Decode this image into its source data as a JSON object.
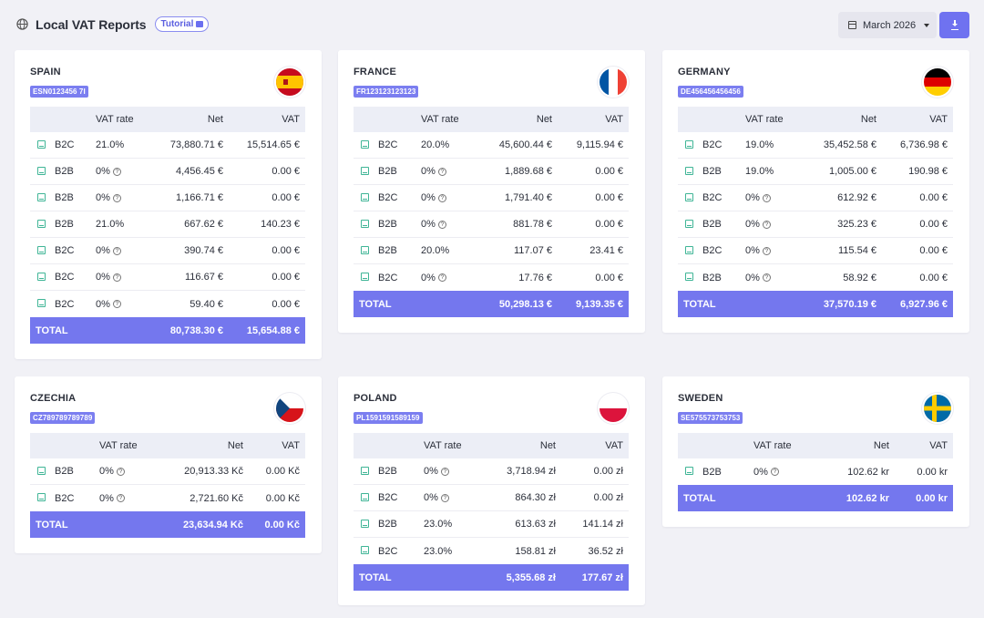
{
  "header": {
    "title": "Local VAT Reports",
    "tutorial_label": "Tutorial",
    "month_label": "March 2026"
  },
  "columns": {
    "vat_rate": "VAT rate",
    "net": "Net",
    "vat": "VAT",
    "total": "TOTAL"
  },
  "cards": {
    "spain": {
      "name": "SPAIN",
      "vat_id": "ESN0123456 7I",
      "rows": [
        {
          "type": "B2C",
          "rate": "21.0%",
          "net": "73,880.71 €",
          "vat": "15,514.65 €"
        },
        {
          "type": "B2B",
          "rate": "0%",
          "net": "4,456.45 €",
          "vat": "0.00 €"
        },
        {
          "type": "B2B",
          "rate": "0%",
          "net": "1,166.71 €",
          "vat": "0.00 €"
        },
        {
          "type": "B2B",
          "rate": "21.0%",
          "net": "667.62 €",
          "vat": "140.23 €"
        },
        {
          "type": "B2C",
          "rate": "0%",
          "net": "390.74 €",
          "vat": "0.00 €"
        },
        {
          "type": "B2C",
          "rate": "0%",
          "net": "116.67 €",
          "vat": "0.00 €"
        },
        {
          "type": "B2C",
          "rate": "0%",
          "net": "59.40 €",
          "vat": "0.00 €"
        }
      ],
      "total_net": "80,738.30 €",
      "total_vat": "15,654.88 €"
    },
    "france": {
      "name": "FRANCE",
      "vat_id": "FR123123123123",
      "rows": [
        {
          "type": "B2C",
          "rate": "20.0%",
          "net": "45,600.44 €",
          "vat": "9,115.94 €"
        },
        {
          "type": "B2B",
          "rate": "0%",
          "net": "1,889.68 €",
          "vat": "0.00 €"
        },
        {
          "type": "B2C",
          "rate": "0%",
          "net": "1,791.40 €",
          "vat": "0.00 €"
        },
        {
          "type": "B2B",
          "rate": "0%",
          "net": "881.78 €",
          "vat": "0.00 €"
        },
        {
          "type": "B2B",
          "rate": "20.0%",
          "net": "117.07 €",
          "vat": "23.41 €"
        },
        {
          "type": "B2C",
          "rate": "0%",
          "net": "17.76 €",
          "vat": "0.00 €"
        }
      ],
      "total_net": "50,298.13 €",
      "total_vat": "9,139.35 €"
    },
    "germany": {
      "name": "GERMANY",
      "vat_id": "DE456456456456",
      "rows": [
        {
          "type": "B2C",
          "rate": "19.0%",
          "net": "35,452.58 €",
          "vat": "6,736.98 €"
        },
        {
          "type": "B2B",
          "rate": "19.0%",
          "net": "1,005.00 €",
          "vat": "190.98 €"
        },
        {
          "type": "B2C",
          "rate": "0%",
          "net": "612.92 €",
          "vat": "0.00 €"
        },
        {
          "type": "B2B",
          "rate": "0%",
          "net": "325.23 €",
          "vat": "0.00 €"
        },
        {
          "type": "B2C",
          "rate": "0%",
          "net": "115.54 €",
          "vat": "0.00 €"
        },
        {
          "type": "B2B",
          "rate": "0%",
          "net": "58.92 €",
          "vat": "0.00 €"
        }
      ],
      "total_net": "37,570.19 €",
      "total_vat": "6,927.96 €"
    },
    "czechia": {
      "name": "CZECHIA",
      "vat_id": "CZ789789789789",
      "rows": [
        {
          "type": "B2B",
          "rate": "0%",
          "net": "20,913.33 Kč",
          "vat": "0.00 Kč"
        },
        {
          "type": "B2C",
          "rate": "0%",
          "net": "2,721.60 Kč",
          "vat": "0.00 Kč"
        }
      ],
      "total_net": "23,634.94 Kč",
      "total_vat": "0.00 Kč"
    },
    "poland": {
      "name": "POLAND",
      "vat_id": "PL1591591589159",
      "rows": [
        {
          "type": "B2B",
          "rate": "0%",
          "net": "3,718.94 zł",
          "vat": "0.00 zł"
        },
        {
          "type": "B2C",
          "rate": "0%",
          "net": "864.30 zł",
          "vat": "0.00 zł"
        },
        {
          "type": "B2B",
          "rate": "23.0%",
          "net": "613.63 zł",
          "vat": "141.14 zł"
        },
        {
          "type": "B2C",
          "rate": "23.0%",
          "net": "158.81 zł",
          "vat": "36.52 zł"
        }
      ],
      "total_net": "5,355.68 zł",
      "total_vat": "177.67 zł"
    },
    "sweden": {
      "name": "SWEDEN",
      "vat_id": "SE575573753753",
      "rows": [
        {
          "type": "B2B",
          "rate": "0%",
          "net": "102.62 kr",
          "vat": "0.00 kr"
        }
      ],
      "total_net": "102.62 kr",
      "total_vat": "0.00 kr"
    }
  }
}
